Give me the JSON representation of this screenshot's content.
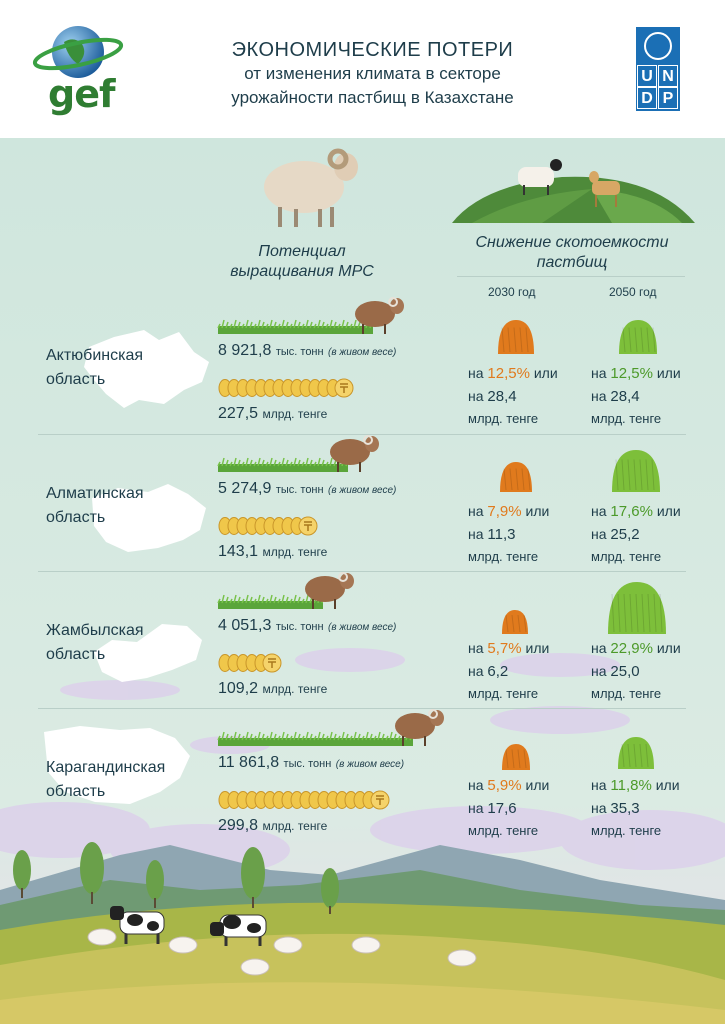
{
  "header": {
    "logo_left_text": "gef",
    "title_line1": "ЭКОНОМИЧЕСКИЕ ПОТЕРИ",
    "title_line2": "от изменения климата в секторе",
    "title_line3": "урожайности пастбищ в Казахстане",
    "undp_letters": [
      "U",
      "N",
      "D",
      "P"
    ]
  },
  "columns": {
    "potential_line1": "Потенциал",
    "potential_line2": "выращивания МРС",
    "decline_line1": "Снижение скотоемкости",
    "decline_line2": "пастбищ",
    "year1": "2030 год",
    "year2": "2050 год"
  },
  "units": {
    "tonnes": "тыс. тонн",
    "live_weight": "(в живом весе)",
    "money": "млрд. тенге",
    "on": "на",
    "or": "или"
  },
  "colors": {
    "orange": "#e07a1d",
    "green": "#7dbf3a",
    "text": "#1e3d4a",
    "coin": "#f0c74a"
  },
  "regions": [
    {
      "name_line1": "Актюбинская",
      "name_line2": "область",
      "tonnes": "8 921,8",
      "money": "227,5",
      "coins": 14,
      "y2030": {
        "pct": "12,5%",
        "value": "28,4"
      },
      "y2050": {
        "pct": "12,5%",
        "value": "28,4"
      }
    },
    {
      "name_line1": "Алматинская",
      "name_line2": "область",
      "tonnes": "5 274,9",
      "money": "143,1",
      "coins": 10,
      "y2030": {
        "pct": "7,9%",
        "value": "11,3"
      },
      "y2050": {
        "pct": "17,6%",
        "value": "25,2"
      }
    },
    {
      "name_line1": "Жамбылская",
      "name_line2": "область",
      "tonnes": "4 051,3",
      "money": "109,2",
      "coins": 6,
      "y2030": {
        "pct": "5,7%",
        "value": "6,2"
      },
      "y2050": {
        "pct": "22,9%",
        "value": "25,0"
      }
    },
    {
      "name_line1": "Карагандинская",
      "name_line2": "область",
      "tonnes": "11 861,8",
      "money": "299,8",
      "coins": 18,
      "y2030": {
        "pct": "5,9%",
        "value": "17,6"
      },
      "y2050": {
        "pct": "11,8%",
        "value": "35,3"
      }
    }
  ]
}
